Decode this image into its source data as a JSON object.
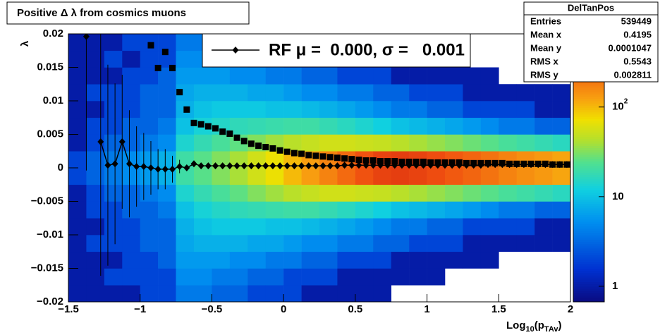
{
  "chart_data": {
    "type": "heatmap",
    "title": "Positive Δ λ from cosmics muons",
    "x_label": [
      "Log",
      "10",
      "(p",
      "TAv",
      ")"
    ],
    "y_label": "λ",
    "xlim": [
      -1.5,
      2
    ],
    "ylim": [
      -0.02,
      0.02
    ],
    "xticks": [
      {
        "value": -1.5,
        "label": "−1.5"
      },
      {
        "value": -1,
        "label": "−1"
      },
      {
        "value": -0.5,
        "label": "−0.5"
      },
      0,
      0.5,
      1,
      1.5,
      2
    ],
    "yticks": [
      {
        "value": -0.02,
        "label": "−0.02"
      },
      {
        "value": -0.015,
        "label": "−0.015"
      },
      {
        "value": -0.01,
        "label": "−0.01"
      },
      {
        "value": -0.005,
        "label": "−0.005"
      },
      0,
      0.005,
      0.01,
      0.015,
      0.02
    ],
    "zlim": [
      0.67,
      655
    ],
    "zlog": true,
    "zticks": [
      1,
      10,
      {
        "value": 100,
        "label": "10",
        "exponent": "2"
      }
    ],
    "xbins": [
      -1.5,
      -1.375,
      -1.25,
      -1.125,
      -1,
      -0.875,
      -0.75,
      -0.625,
      -0.5,
      -0.375,
      -0.25,
      -0.125,
      0,
      0.125,
      0.25,
      0.375,
      0.5,
      0.625,
      0.75,
      0.875,
      1,
      1.125,
      1.25,
      1.375,
      1.5,
      1.625,
      1.75,
      1.875,
      2
    ],
    "ybins": [
      -0.02,
      -0.0175,
      -0.015,
      -0.0125,
      -0.01,
      -0.0075,
      -0.005,
      -0.0025,
      0,
      0.0025,
      0.005,
      0.0075,
      0.01,
      0.0125,
      0.015,
      0.0175,
      0.02
    ],
    "z": [
      [
        1,
        1,
        1,
        1,
        1,
        1,
        1,
        2,
        2,
        1,
        1,
        1,
        1,
        1,
        1,
        1
      ],
      [
        1,
        1,
        1,
        2,
        1,
        2,
        2,
        3,
        3,
        2,
        2,
        1,
        2,
        1,
        1,
        1
      ],
      [
        1,
        2,
        1,
        2,
        2,
        2,
        3,
        4,
        4,
        3,
        2,
        2,
        2,
        1,
        2,
        1
      ],
      [
        1,
        2,
        2,
        2,
        2,
        3,
        3,
        5,
        5,
        3,
        3,
        2,
        2,
        2,
        1,
        2
      ],
      [
        2,
        2,
        2,
        3,
        3,
        3,
        4,
        6,
        6,
        4,
        3,
        3,
        3,
        2,
        2,
        2
      ],
      [
        2,
        2,
        3,
        3,
        3,
        4,
        5,
        8,
        8,
        5,
        4,
        3,
        3,
        3,
        2,
        2
      ],
      [
        4,
        5,
        6,
        7,
        8,
        10,
        14,
        20,
        20,
        14,
        10,
        8,
        7,
        6,
        5,
        4
      ],
      [
        4,
        5,
        6,
        8,
        10,
        13,
        18,
        25,
        25,
        18,
        13,
        10,
        8,
        6,
        5,
        4
      ],
      [
        3,
        4,
        6,
        8,
        11,
        15,
        22,
        32,
        32,
        22,
        15,
        11,
        8,
        6,
        4,
        3
      ],
      [
        3,
        4,
        5,
        8,
        11,
        17,
        26,
        40,
        40,
        26,
        17,
        11,
        8,
        5,
        4,
        3
      ],
      [
        2,
        3,
        5,
        7,
        11,
        18,
        32,
        55,
        55,
        32,
        18,
        11,
        7,
        5,
        3,
        2
      ],
      [
        2,
        3,
        4,
        7,
        10,
        19,
        38,
        70,
        70,
        38,
        19,
        10,
        7,
        4,
        3,
        2
      ],
      [
        2,
        2,
        4,
        6,
        10,
        20,
        45,
        100,
        100,
        45,
        20,
        10,
        6,
        4,
        2,
        2
      ],
      [
        1,
        2,
        3,
        5,
        9,
        20,
        50,
        130,
        130,
        50,
        20,
        9,
        5,
        3,
        2,
        1
      ],
      [
        1,
        2,
        3,
        5,
        8,
        18,
        55,
        170,
        170,
        55,
        18,
        8,
        5,
        3,
        2,
        1
      ],
      [
        1,
        1,
        2,
        4,
        7,
        16,
        55,
        220,
        220,
        55,
        16,
        7,
        4,
        2,
        1,
        1
      ],
      [
        1,
        1,
        2,
        4,
        6,
        14,
        52,
        280,
        280,
        52,
        14,
        6,
        4,
        2,
        1,
        1
      ],
      [
        1,
        1,
        2,
        3,
        5,
        12,
        50,
        340,
        340,
        50,
        12,
        5,
        3,
        2,
        1,
        1
      ],
      [
        0,
        1,
        1,
        3,
        4,
        10,
        45,
        360,
        360,
        45,
        10,
        4,
        3,
        1,
        1,
        0
      ],
      [
        0,
        1,
        1,
        2,
        4,
        9,
        40,
        340,
        340,
        40,
        9,
        4,
        2,
        1,
        1,
        0
      ],
      [
        0,
        1,
        1,
        2,
        3,
        8,
        36,
        300,
        300,
        36,
        8,
        3,
        2,
        1,
        1,
        0
      ],
      [
        0,
        0,
        1,
        2,
        3,
        7,
        32,
        260,
        260,
        32,
        7,
        3,
        2,
        1,
        0,
        0
      ],
      [
        0,
        0,
        1,
        1,
        2,
        6,
        28,
        230,
        230,
        28,
        6,
        2,
        1,
        1,
        0,
        0
      ],
      [
        0,
        0,
        1,
        1,
        2,
        5,
        25,
        200,
        200,
        25,
        5,
        2,
        1,
        1,
        0,
        0
      ],
      [
        0,
        0,
        0,
        1,
        2,
        4,
        22,
        170,
        170,
        22,
        4,
        2,
        1,
        0,
        0,
        0
      ],
      [
        0,
        0,
        0,
        1,
        2,
        4,
        20,
        150,
        150,
        20,
        4,
        2,
        1,
        0,
        0,
        0
      ],
      [
        0,
        0,
        0,
        1,
        1,
        3,
        18,
        135,
        135,
        18,
        3,
        1,
        1,
        0,
        0,
        0
      ],
      [
        0,
        0,
        0,
        1,
        1,
        3,
        16,
        120,
        120,
        16,
        3,
        1,
        1,
        0,
        0,
        0
      ]
    ],
    "series": [
      {
        "marker": "square",
        "color": "#000000",
        "x": [
          -0.925,
          -0.875,
          -0.825,
          -0.775,
          -0.725,
          -0.675,
          -0.625,
          -0.575,
          -0.525,
          -0.475,
          -0.425,
          -0.375,
          -0.325,
          -0.275,
          -0.225,
          -0.175,
          -0.125,
          -0.075,
          -0.025,
          0.025,
          0.075,
          0.125,
          0.175,
          0.225,
          0.275,
          0.325,
          0.375,
          0.425,
          0.475,
          0.525,
          0.575,
          0.625,
          0.675,
          0.725,
          0.775,
          0.825,
          0.875,
          0.925,
          0.975,
          1.025,
          1.075,
          1.125,
          1.175,
          1.225,
          1.275,
          1.325,
          1.375,
          1.425,
          1.475,
          1.525,
          1.575,
          1.625,
          1.675,
          1.725,
          1.775,
          1.825,
          1.875,
          1.925,
          1.975
        ],
        "values": [
          0.0183,
          0.0149,
          0.0173,
          0.0149,
          0.0113,
          0.0087,
          0.0067,
          0.0065,
          0.0062,
          0.0059,
          0.0054,
          0.0051,
          0.0045,
          0.004,
          0.0036,
          0.0033,
          0.0031,
          0.0029,
          0.0026,
          0.0024,
          0.0022,
          0.0021,
          0.0019,
          0.0018,
          0.0017,
          0.0016,
          0.0015,
          0.0014,
          0.0013,
          0.0012,
          0.0011,
          0.0011,
          0.001,
          0.001,
          0.001,
          0.0009,
          0.0009,
          0.0009,
          0.0009,
          0.0008,
          0.0008,
          0.0008,
          0.0008,
          0.0008,
          0.0007,
          0.0007,
          0.0007,
          0.0007,
          0.0007,
          0.0007,
          0.0006,
          0.0006,
          0.0006,
          0.0006,
          0.0006,
          0.0006,
          0.0005,
          0.0005,
          0.0005
        ]
      },
      {
        "marker": "diamond",
        "color": "#000000",
        "connect": true,
        "name": "RF μ =  0.000, σ =   0.001",
        "x": [
          -1.375,
          -1.325,
          -1.275,
          -1.225,
          -1.175,
          -1.125,
          -1.075,
          -1.025,
          -0.975,
          -0.925,
          -0.875,
          -0.825,
          -0.775,
          -0.725,
          -0.675,
          -0.625,
          -0.575,
          -0.525,
          -0.475,
          -0.425,
          -0.375,
          -0.325,
          -0.275,
          -0.225,
          -0.175,
          -0.125,
          -0.075,
          -0.025,
          0.025,
          0.075,
          0.125,
          0.175,
          0.225,
          0.275,
          0.325,
          0.375,
          0.425,
          0.475,
          0.525,
          0.575,
          0.625,
          0.675,
          0.725,
          0.775,
          0.825,
          0.875,
          0.925,
          0.975,
          1.025,
          1.075,
          1.125,
          1.175,
          1.225,
          1.275,
          1.325,
          1.375,
          1.425,
          1.475,
          1.525,
          1.575,
          1.625,
          1.675,
          1.725,
          1.775,
          1.825,
          1.875,
          1.925,
          1.975
        ],
        "values": [
          0.0196,
          null,
          0.0039,
          0.0004,
          0.0006,
          0.0039,
          0.0006,
          0.0002,
          0.0002,
          0,
          -0.0002,
          -0.0002,
          -0.0002,
          0.0002,
          0,
          0.0006,
          0.0003,
          0.0003,
          0.0003,
          0.0003,
          0.0003,
          0.0003,
          0.0003,
          0.0003,
          0.0003,
          0.0003,
          0.0003,
          0.0003,
          0.0003,
          0.0003,
          0.0003,
          0.0003,
          0.0003,
          0.0003,
          0.0003,
          0.0003,
          0.0004,
          0.0004,
          0.0004,
          0.0004,
          0.0004,
          0.0004,
          0.0004,
          0.0004,
          0.0004,
          0.0004,
          0.0004,
          0.0004,
          0.0004,
          0.0004,
          0.0004,
          0.0004,
          0.0004,
          0.0004,
          0.0004,
          0.0004,
          0.0005,
          0.0005,
          0.0005,
          0.0005,
          0.0005,
          0.0005,
          0.0005,
          0.0005,
          0.0005,
          0.0005,
          0.0005,
          0.0005
        ],
        "errors": [
          0.02,
          null,
          0.02,
          0.015,
          0.012,
          0.01,
          0.008,
          0.006,
          0.005,
          0.004,
          0.003,
          0.003,
          0.002,
          0.001,
          0,
          0,
          0,
          0,
          0,
          0,
          0,
          0,
          0,
          0,
          0,
          0,
          0,
          0,
          0,
          0,
          0,
          0,
          0,
          0,
          0,
          0,
          0,
          0,
          0,
          0,
          0,
          0,
          0,
          0,
          0,
          0,
          0,
          0,
          0,
          0,
          0,
          0,
          0,
          0,
          0,
          0,
          0,
          0,
          0,
          0,
          0,
          0,
          0,
          0,
          0,
          0,
          0,
          0
        ]
      }
    ],
    "stats": {
      "title": "DelTanPos",
      "rows": [
        {
          "label": "Entries",
          "value": 539449
        },
        {
          "label": "Mean x",
          "value": 0.4195
        },
        {
          "label": "Mean y",
          "value": 0.0001047
        },
        {
          "label": "RMS x",
          "value": 0.5543
        },
        {
          "label": "RMS y",
          "value": 0.002811
        }
      ]
    }
  }
}
